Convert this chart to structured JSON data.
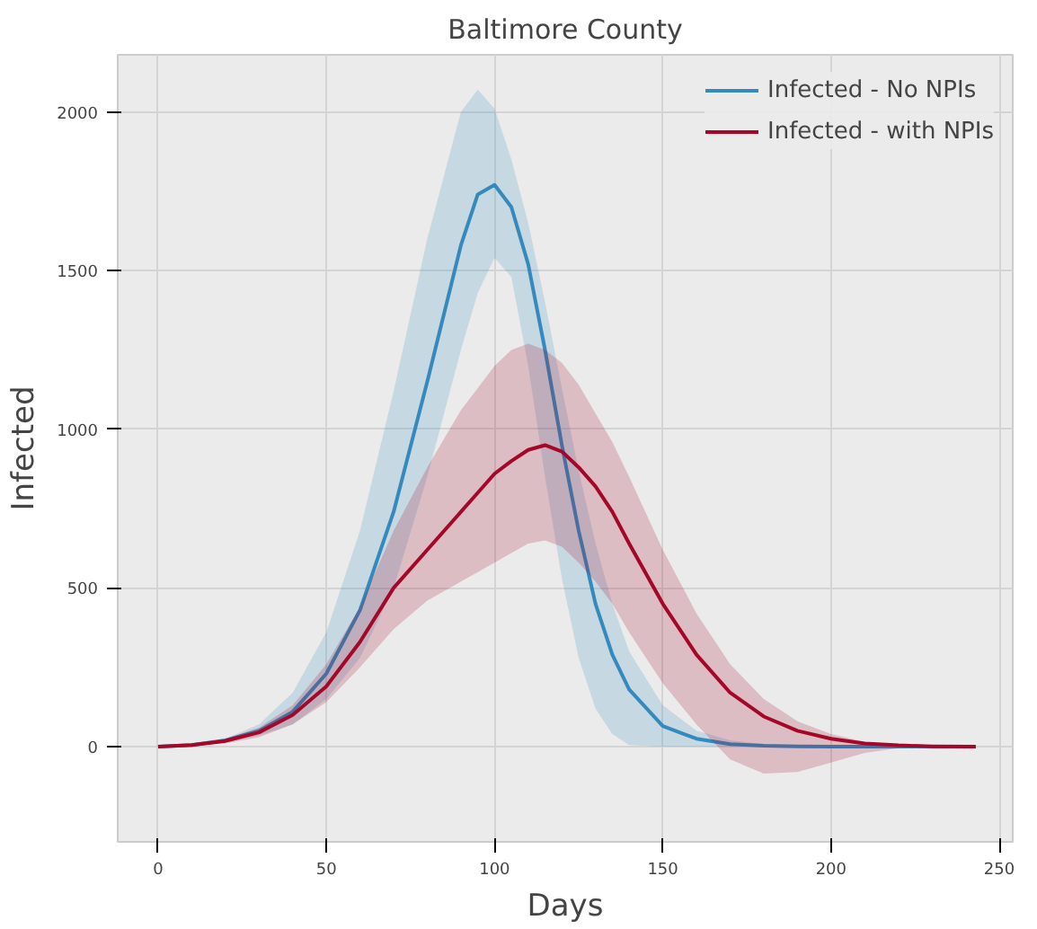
{
  "chart_data": {
    "type": "line",
    "title": "Baltimore County",
    "xlabel": "Days",
    "ylabel": "Infected",
    "xlim": [
      -12,
      254
    ],
    "ylim": [
      -300,
      2180
    ],
    "xticks": [
      0,
      50,
      100,
      150,
      200,
      250
    ],
    "yticks": [
      0,
      500,
      1000,
      1500,
      2000
    ],
    "grid": true,
    "legend": "top right",
    "marker": "none",
    "line_style": "solid",
    "series": [
      {
        "name": "Infected - No NPIs",
        "color": "#348abd",
        "x": [
          0,
          10,
          20,
          30,
          40,
          50,
          60,
          70,
          80,
          90,
          95,
          100,
          105,
          110,
          115,
          120,
          125,
          130,
          135,
          140,
          150,
          160,
          170,
          180,
          190,
          200,
          210,
          220,
          230,
          243
        ],
        "values": [
          0,
          5,
          20,
          50,
          110,
          230,
          430,
          740,
          1150,
          1580,
          1740,
          1770,
          1700,
          1520,
          1250,
          950,
          680,
          450,
          290,
          180,
          65,
          25,
          8,
          3,
          1,
          0,
          0,
          0,
          0,
          0
        ],
        "upper": [
          0,
          8,
          25,
          70,
          170,
          360,
          680,
          1120,
          1600,
          2000,
          2070,
          2010,
          1850,
          1650,
          1400,
          1130,
          870,
          640,
          450,
          300,
          130,
          50,
          20,
          8,
          3,
          0,
          0,
          0,
          0,
          0
        ],
        "lower": [
          0,
          3,
          15,
          35,
          70,
          150,
          280,
          500,
          850,
          1250,
          1430,
          1540,
          1480,
          1200,
          850,
          530,
          280,
          120,
          40,
          5,
          0,
          0,
          0,
          0,
          0,
          0,
          0,
          0,
          0,
          0
        ]
      },
      {
        "name": "Infected - with NPIs",
        "color": "#a60628",
        "x": [
          0,
          10,
          20,
          30,
          40,
          50,
          60,
          70,
          80,
          90,
          95,
          100,
          105,
          110,
          115,
          120,
          125,
          130,
          135,
          140,
          150,
          160,
          170,
          180,
          190,
          200,
          210,
          220,
          230,
          243
        ],
        "values": [
          0,
          5,
          18,
          45,
          100,
          190,
          330,
          500,
          620,
          740,
          800,
          860,
          900,
          935,
          950,
          930,
          880,
          820,
          740,
          640,
          450,
          290,
          170,
          95,
          50,
          25,
          10,
          4,
          1,
          0
        ],
        "upper": [
          0,
          8,
          25,
          60,
          130,
          260,
          440,
          680,
          880,
          1060,
          1130,
          1200,
          1250,
          1270,
          1250,
          1210,
          1140,
          1050,
          960,
          850,
          620,
          420,
          260,
          150,
          80,
          40,
          15,
          5,
          2,
          0
        ],
        "lower": [
          0,
          3,
          10,
          30,
          70,
          140,
          250,
          370,
          460,
          520,
          550,
          580,
          610,
          640,
          650,
          630,
          580,
          520,
          450,
          360,
          200,
          70,
          -40,
          -85,
          -80,
          -50,
          -20,
          -5,
          0,
          0
        ]
      }
    ]
  }
}
